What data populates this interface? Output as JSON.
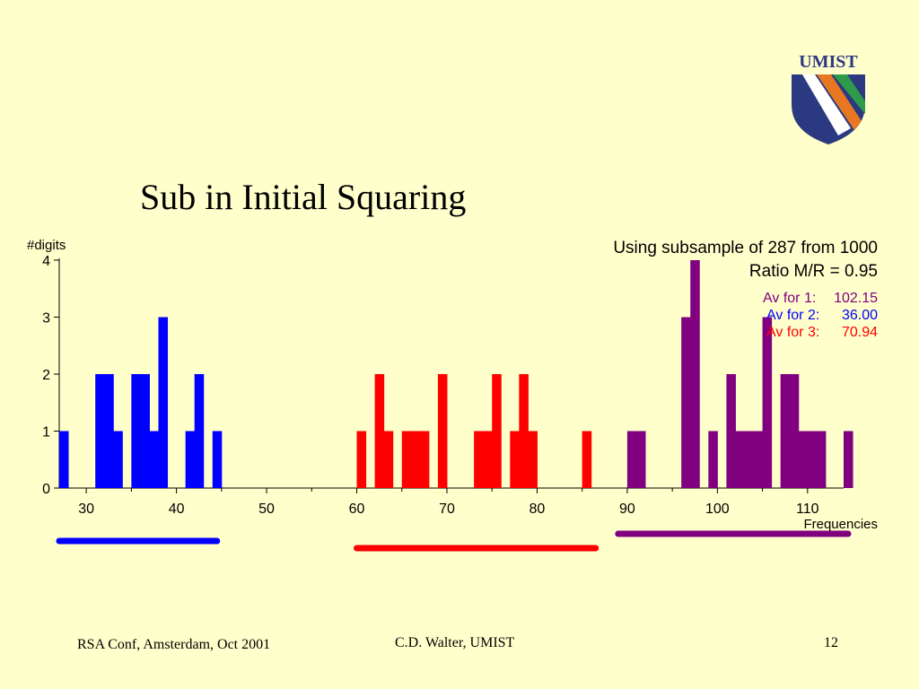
{
  "slide": {
    "title": "Sub in Initial Squaring",
    "logo_text": "UMIST",
    "footer_left": "RSA Conf, Amsterdam, Oct 2001",
    "footer_center": "C.D. Walter, UMIST",
    "footer_right": "12"
  },
  "colors": {
    "background": "#ffffcc",
    "blue": "#0000ff",
    "red": "#ff0000",
    "purple": "#800080",
    "logo_navy": "#2b3a80",
    "logo_orange": "#e87722",
    "logo_green": "#2e9b4a"
  },
  "chart_data": {
    "type": "bar",
    "ylabel": "#digits",
    "xlabel": "Frequencies",
    "xlim": [
      27,
      114
    ],
    "ylim": [
      0,
      4
    ],
    "xticks": [
      30,
      40,
      50,
      60,
      70,
      80,
      90,
      100,
      110
    ],
    "yticks": [
      0,
      1,
      2,
      3,
      4
    ],
    "annotations": {
      "line1": "Using subsample of 287 from 1000",
      "line2": "Ratio M/R = 0.95",
      "av1_label": "Av for 1:",
      "av1_value": "102.15",
      "av2_label": "Av for 2:",
      "av2_value": "36.00",
      "av3_label": "Av for 3:",
      "av3_value": "70.94"
    },
    "series": [
      {
        "color": "#0000ff",
        "x": [
          27,
          31,
          32,
          33,
          35,
          36,
          37,
          38,
          41,
          42,
          44
        ],
        "values": [
          1,
          2,
          2,
          1,
          2,
          2,
          1,
          3,
          1,
          2,
          1
        ],
        "range": [
          27,
          44
        ]
      },
      {
        "color": "#ff0000",
        "x": [
          60,
          62,
          63,
          65,
          66,
          67,
          69,
          73,
          74,
          75,
          77,
          78,
          79,
          85
        ],
        "values": [
          1,
          2,
          1,
          1,
          1,
          1,
          2,
          1,
          1,
          2,
          1,
          2,
          1,
          1
        ],
        "range": [
          60,
          86
        ]
      },
      {
        "color": "#800080",
        "x": [
          90,
          91,
          96,
          97,
          99,
          101,
          102,
          103,
          104,
          105,
          107,
          108,
          109,
          110,
          111,
          114
        ],
        "values": [
          1,
          1,
          3,
          4,
          1,
          2,
          1,
          1,
          1,
          3,
          2,
          2,
          1,
          1,
          1,
          1
        ],
        "range": [
          89,
          114
        ]
      }
    ]
  }
}
